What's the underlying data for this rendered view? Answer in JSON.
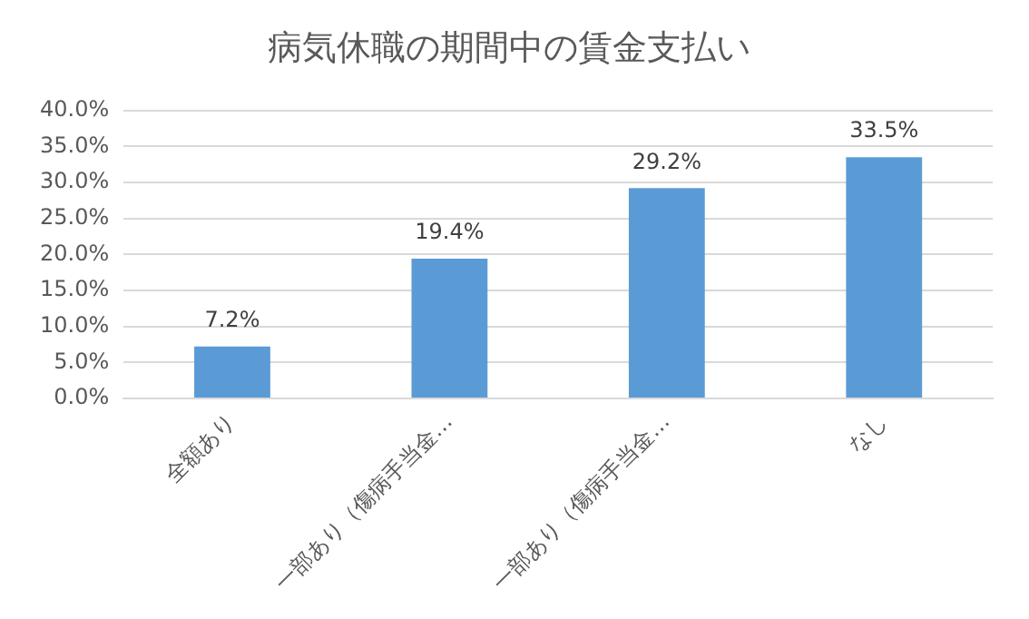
{
  "chart_data": {
    "type": "bar",
    "title": "病気休職の期間中の賃金支払い",
    "categories": [
      "全額あり",
      "一部あり（傷病手当金…",
      "一部あり（傷病手当金…",
      "なし"
    ],
    "values": [
      7.2,
      19.4,
      29.2,
      33.5
    ],
    "value_labels": [
      "7.2%",
      "19.4%",
      "29.2%",
      "33.5%"
    ],
    "color": "#5b9bd5",
    "ylim": [
      0,
      40
    ],
    "yticks": [
      {
        "value": 0,
        "label": "0.0%"
      },
      {
        "value": 5,
        "label": "5.0%"
      },
      {
        "value": 10,
        "label": "10.0%"
      },
      {
        "value": 15,
        "label": "15.0%"
      },
      {
        "value": 20,
        "label": "20.0%"
      },
      {
        "value": 25,
        "label": "25.0%"
      },
      {
        "value": 30,
        "label": "30.0%"
      },
      {
        "value": 35,
        "label": "35.0%"
      },
      {
        "value": 40,
        "label": "40.0%"
      }
    ],
    "grid": "y",
    "legend": false
  }
}
